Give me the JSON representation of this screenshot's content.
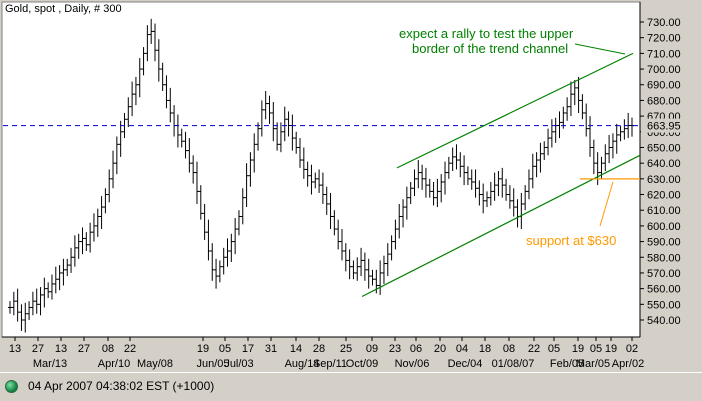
{
  "chart_title": "Gold, spot , Daily, # 300",
  "status": {
    "text": "04 Apr 2007 04:38:02  EST (+1000)"
  },
  "chart_data": {
    "type": "ohlc",
    "title": "Gold, spot , Daily, # 300",
    "ylim": [
      530,
      735
    ],
    "y_ticks": [
      "540.00",
      "550.00",
      "560.00",
      "570.00",
      "580.00",
      "590.00",
      "600.00",
      "610.00",
      "620.00",
      "630.00",
      "640.00",
      "650.00",
      "660.00",
      "670.00",
      "680.00",
      "690.00",
      "700.00",
      "710.00",
      "720.00",
      "730.00"
    ],
    "y_tick_values": [
      540,
      550,
      560,
      570,
      580,
      590,
      600,
      610,
      620,
      630,
      640,
      650,
      660,
      670,
      680,
      690,
      700,
      710,
      720,
      730
    ],
    "x_ticks_row1": [
      "13",
      "27",
      "13",
      "27",
      "08",
      "22",
      "19",
      "05",
      "17",
      "31",
      "14",
      "28",
      "25",
      "09",
      "23",
      "06",
      "20",
      "04",
      "18",
      "08",
      "22",
      "05",
      "19",
      "05",
      "19",
      "02"
    ],
    "x_ticks_row2": [
      "Mar/13",
      "Apr/10",
      "May/08",
      "Jun/05",
      "Jul/03",
      "Aug/14",
      "Sep/11",
      "Oct/09",
      "Nov/06",
      "Dec/04",
      "01/08/07",
      "Feb/05",
      "Mar/05",
      "Apr/02"
    ],
    "current_price": {
      "value": 663.95,
      "label": "663.95",
      "color": "#0000cc"
    },
    "bar_color": "#000000",
    "series_closes": [
      548,
      552,
      545,
      540,
      544,
      548,
      552,
      550,
      556,
      560,
      558,
      563,
      566,
      570,
      572,
      575,
      580,
      586,
      590,
      592,
      588,
      596,
      600,
      606,
      612,
      620,
      630,
      640,
      652,
      660,
      668,
      676,
      684,
      690,
      700,
      710,
      722,
      724,
      712,
      700,
      690,
      680,
      672,
      664,
      658,
      654,
      648,
      640,
      634,
      622,
      608,
      596,
      584,
      572,
      568,
      574,
      580,
      584,
      590,
      598,
      606,
      618,
      632,
      642,
      652,
      662,
      674,
      678,
      672,
      662,
      652,
      660,
      668,
      664,
      656,
      650,
      642,
      636,
      632,
      628,
      630,
      626,
      620,
      614,
      606,
      598,
      590,
      584,
      578,
      574,
      570,
      574,
      578,
      572,
      568,
      566,
      562,
      570,
      576,
      582,
      590,
      598,
      606,
      612,
      618,
      624,
      630,
      634,
      630,
      626,
      622,
      618,
      622,
      628,
      634,
      640,
      644,
      642,
      638,
      634,
      630,
      628,
      624,
      620,
      616,
      618,
      622,
      626,
      630,
      626,
      620,
      616,
      612,
      606,
      614,
      622,
      630,
      638,
      642,
      646,
      650,
      656,
      660,
      664,
      666,
      672,
      676,
      684,
      688,
      680,
      672,
      662,
      650,
      640,
      634,
      640,
      646,
      650,
      654,
      658,
      660,
      662,
      664,
      663.95
    ],
    "channel_upper": {
      "from": [
        "Oct/22",
        637
      ],
      "to": [
        "Apr/02",
        710
      ]
    },
    "channel_lower": {
      "from": [
        "Sep/25",
        555
      ],
      "to": [
        "Apr/04",
        645
      ]
    },
    "support": {
      "value": 630,
      "label": "support at $630",
      "color": "#ff9900"
    },
    "annotations": [
      {
        "text": "expect a rally to test the upper border of the trend channel",
        "line1": "expect a rally to test the upper",
        "line2": "border of the trend channel",
        "color": "#008000"
      }
    ],
    "channel_color": "#008000",
    "grid": false
  }
}
